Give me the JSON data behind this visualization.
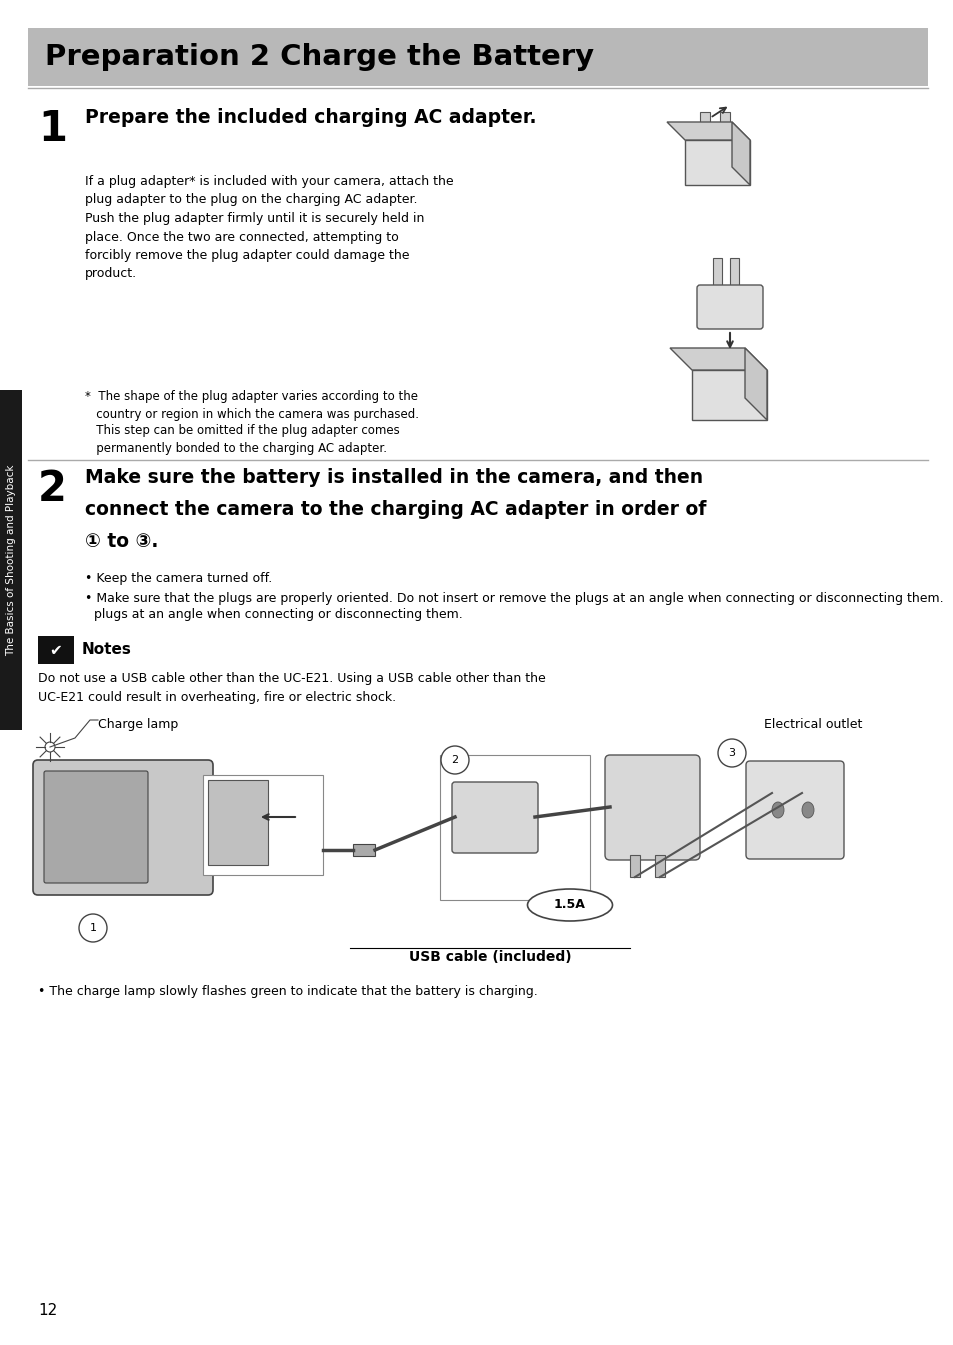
{
  "page_width": 9.54,
  "page_height": 13.45,
  "bg_color": "#ffffff",
  "header_bg": "#b8b8b8",
  "header_text": "Preparation 2 Charge the Battery",
  "header_fontsize": 21,
  "sidebar_color": "#1a1a1a",
  "sidebar_text": "The Basics of Shooting and Playback",
  "step1_number": "1",
  "step1_text": "Prepare the included charging AC adapter.",
  "step1_body": "If a plug adapter* is included with your camera, attach the\nplug adapter to the plug on the charging AC adapter.\nPush the plug adapter firmly until it is securely held in\nplace. Once the two are connected, attempting to\nforcibly remove the plug adapter could damage the\nproduct.",
  "step1_note1": "*  The shape of the plug adapter varies according to the\n   country or region in which the camera was purchased.",
  "step1_note2": "   This step can be omitted if the plug adapter comes\n   permanently bonded to the charging AC adapter.",
  "step2_number": "2",
  "step2_line1": "Make sure the battery is installed in the camera, and then",
  "step2_line2": "connect the camera to the charging AC adapter in order of",
  "step2_line3": "① to ③.",
  "step2_bullet1": "Keep the camera turned off.",
  "step2_bullet2": "Make sure that the plugs are properly oriented. Do not insert or remove the plugs at an angle when connecting or disconnecting them.",
  "notes_title": "Notes",
  "notes_body": "Do not use a USB cable other than the UC-E21. Using a USB cable other than the\nUC-E21 could result in overheating, fire or electric shock.",
  "label_charge_lamp": "Charge lamp",
  "label_electrical": "Electrical outlet",
  "label_usb": "USB cable (included)",
  "label_15a": "1.5A",
  "bullet_final": "The charge lamp slowly flashes green to indicate that the battery is charging.",
  "page_number": "12",
  "divider_color": "#aaaaaa",
  "text_color": "#000000",
  "step1_body_fontsize": 9,
  "step1_note_fontsize": 8.5,
  "step2_text_fontsize": 13.5,
  "bullet_fontsize": 9,
  "notes_body_fontsize": 9
}
